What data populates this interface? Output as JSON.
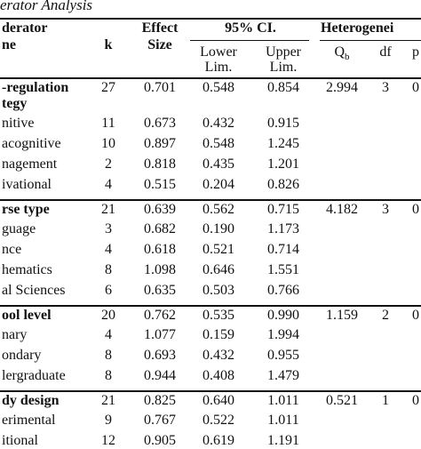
{
  "caption": "erator Analysis",
  "header": {
    "moderator_line1": "derator",
    "moderator_line2": "ne",
    "k": "k",
    "effect_line1": "Effect",
    "effect_line2": "Size",
    "ci": "95% CI.",
    "lower_line1": "Lower",
    "lower_line2": "Lim.",
    "upper_line1": "Upper",
    "upper_line2": "Lim.",
    "heterogeneity": "Heterogenei",
    "qb": "Q",
    "qb_sub": "b",
    "df": "df",
    "p": "p"
  },
  "groups": [
    {
      "name_line1": "-regulation",
      "name_line2": "tegy",
      "k": "27",
      "es": "0.701",
      "lower": "0.548",
      "upper": "0.854",
      "qb": "2.994",
      "df": "3",
      "p": "0",
      "rows": [
        {
          "name": "nitive",
          "k": "11",
          "es": "0.673",
          "lower": "0.432",
          "upper": "0.915"
        },
        {
          "name": "acognitive",
          "k": "10",
          "es": "0.897",
          "lower": "0.548",
          "upper": "1.245"
        },
        {
          "name": "nagement",
          "k": "2",
          "es": "0.818",
          "lower": "0.435",
          "upper": "1.201"
        },
        {
          "name": "ivational",
          "k": "4",
          "es": "0.515",
          "lower": "0.204",
          "upper": "0.826"
        }
      ]
    },
    {
      "name_line1": "rse type",
      "k": "21",
      "es": "0.639",
      "lower": "0.562",
      "upper": "0.715",
      "qb": "4.182",
      "df": "3",
      "p": "0",
      "rows": [
        {
          "name": "guage",
          "k": "3",
          "es": "0.682",
          "lower": "0.190",
          "upper": "1.173"
        },
        {
          "name": "nce",
          "k": "4",
          "es": "0.618",
          "lower": "0.521",
          "upper": "0.714"
        },
        {
          "name": "hematics",
          "k": "8",
          "es": "1.098",
          "lower": "0.646",
          "upper": "1.551"
        },
        {
          "name": "al Sciences",
          "k": "6",
          "es": "0.635",
          "lower": "0.503",
          "upper": "0.766"
        }
      ]
    },
    {
      "name_line1": "ool level",
      "k": "20",
      "es": "0.762",
      "lower": "0.535",
      "upper": "0.990",
      "qb": "1.159",
      "df": "2",
      "p": "0",
      "rows": [
        {
          "name": "nary",
          "k": "4",
          "es": "1.077",
          "lower": "0.159",
          "upper": "1.994"
        },
        {
          "name": "ondary",
          "k": "8",
          "es": "0.693",
          "lower": "0.432",
          "upper": "0.955"
        },
        {
          "name": "lergraduate",
          "k": "8",
          "es": "0.944",
          "lower": "0.408",
          "upper": "1.479"
        }
      ]
    },
    {
      "name_line1": "dy design",
      "k": "21",
      "es": "0.825",
      "lower": "0.640",
      "upper": "1.011",
      "qb": "0.521",
      "df": "1",
      "p": "0",
      "rows": [
        {
          "name": "erimental",
          "k": "9",
          "es": "0.767",
          "lower": "0.522",
          "upper": "1.011"
        },
        {
          "name": "itional",
          "k": "12",
          "es": "0.905",
          "lower": "0.619",
          "upper": "1.191"
        }
      ]
    }
  ]
}
